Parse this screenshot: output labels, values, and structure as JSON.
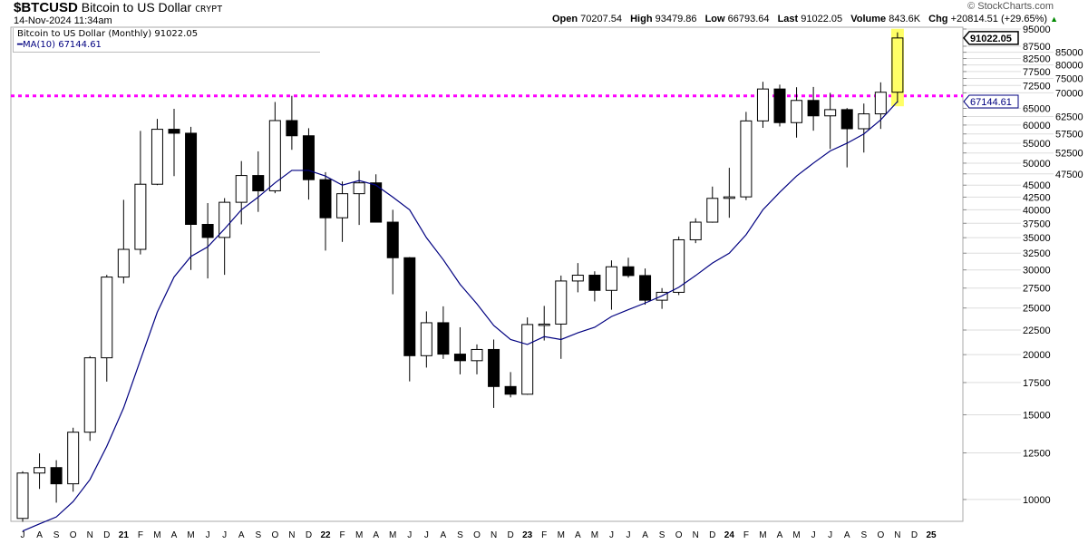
{
  "header": {
    "symbol": "$BTCUSD",
    "name": "Bitcoin to US Dollar",
    "exchange": "CRYPT",
    "datetime": "14-Nov-2024 11:34am",
    "brand": "© StockCharts.com",
    "quote": {
      "open_label": "Open",
      "open": "70207.54",
      "high_label": "High",
      "high": "93479.86",
      "low_label": "Low",
      "low": "66793.64",
      "last_label": "Last",
      "last": "91022.05",
      "volume_label": "Volume",
      "volume": "843.6K",
      "chg_label": "Chg",
      "chg": "+20814.51 (+29.65%)",
      "chg_arrow": "▲"
    }
  },
  "legend": {
    "series": "Bitcoin to US Dollar (Monthly) 91022.05",
    "ma": "MA(10) 67144.61"
  },
  "colors": {
    "ma": "#000080",
    "highlight": "#ffff66",
    "resistance": "#ff00ff",
    "up": "#ffffff",
    "down": "#000000"
  },
  "chart_data": {
    "type": "candlestick",
    "scale": "log",
    "ylim": [
      8300,
      97000
    ],
    "resistance_level": 69000,
    "last_tag": "91022.05",
    "ma_tag": "67144.61",
    "yticks": [
      "95000",
      "87500",
      "85000",
      "82500",
      "80000",
      "77500",
      "75000",
      "72500",
      "70000",
      "65000",
      "62500",
      "60000",
      "57500",
      "55000",
      "52500",
      "50000",
      "47500",
      "45000",
      "42500",
      "40000",
      "37500",
      "35000",
      "32500",
      "30000",
      "27500",
      "25000",
      "22500",
      "20000",
      "17500",
      "15000",
      "12500",
      "10000"
    ],
    "xticks": [
      "J",
      "A",
      "S",
      "O",
      "N",
      "D",
      "21",
      "F",
      "M",
      "A",
      "M",
      "J",
      "J",
      "A",
      "S",
      "O",
      "N",
      "D",
      "22",
      "F",
      "M",
      "A",
      "M",
      "J",
      "J",
      "A",
      "S",
      "O",
      "N",
      "D",
      "23",
      "F",
      "M",
      "A",
      "M",
      "J",
      "J",
      "A",
      "S",
      "O",
      "N",
      "D",
      "24",
      "F",
      "M",
      "A",
      "M",
      "J",
      "J",
      "A",
      "S",
      "O",
      "N",
      "D",
      "25"
    ],
    "candles": [
      [
        9135,
        11450,
        8990,
        11350
      ],
      [
        11350,
        12470,
        10520,
        11650
      ],
      [
        11650,
        12070,
        9850,
        10780
      ],
      [
        10780,
        14100,
        10380,
        13800
      ],
      [
        13800,
        19860,
        13240,
        19700
      ],
      [
        19700,
        29300,
        17580,
        28990
      ],
      [
        28990,
        41950,
        28130,
        33100
      ],
      [
        33100,
        58350,
        32300,
        45200
      ],
      [
        45200,
        61800,
        45000,
        58800
      ],
      [
        58800,
        64860,
        47000,
        57700
      ],
      [
        57700,
        59500,
        30000,
        37300
      ],
      [
        37300,
        41300,
        28800,
        35040
      ],
      [
        35040,
        42300,
        29300,
        41460
      ],
      [
        41460,
        50500,
        37300,
        47130
      ],
      [
        47130,
        52900,
        39600,
        43800
      ],
      [
        43800,
        67000,
        43300,
        61300
      ],
      [
        61300,
        69000,
        53300,
        57000
      ],
      [
        57000,
        59100,
        42000,
        46200
      ],
      [
        46200,
        47900,
        32900,
        38500
      ],
      [
        38500,
        45800,
        34300,
        43200
      ],
      [
        43200,
        48200,
        37200,
        45500
      ],
      [
        45500,
        47400,
        37700,
        37700
      ],
      [
        37700,
        40000,
        26700,
        31800
      ],
      [
        31800,
        31900,
        17600,
        19900
      ],
      [
        19900,
        24600,
        18800,
        23300
      ],
      [
        23300,
        25200,
        19600,
        20050
      ],
      [
        20050,
        22800,
        18200,
        19430
      ],
      [
        19430,
        21000,
        18200,
        20500
      ],
      [
        20500,
        21500,
        15500,
        17170
      ],
      [
        17170,
        18400,
        16300,
        16550
      ],
      [
        16550,
        23900,
        16500,
        23100
      ],
      [
        23100,
        25250,
        21400,
        23150
      ],
      [
        23150,
        29200,
        19600,
        28450
      ],
      [
        28450,
        31000,
        26950,
        29250
      ],
      [
        29250,
        29800,
        25800,
        27200
      ],
      [
        27200,
        31400,
        24800,
        30450
      ],
      [
        30450,
        31800,
        28900,
        29200
      ],
      [
        29200,
        30200,
        25400,
        25950
      ],
      [
        25950,
        27500,
        24900,
        26950
      ],
      [
        26950,
        35200,
        26600,
        34650
      ],
      [
        34650,
        38400,
        34100,
        37700
      ],
      [
        37700,
        44700,
        37600,
        42250
      ],
      [
        42250,
        48900,
        38500,
        42550
      ],
      [
        42550,
        63900,
        41900,
        61200
      ],
      [
        61200,
        73800,
        59200,
        71300
      ],
      [
        71300,
        72800,
        59600,
        60700
      ],
      [
        60700,
        71900,
        56500,
        67500
      ],
      [
        67500,
        72000,
        58400,
        62700
      ],
      [
        62700,
        70000,
        53500,
        64600
      ],
      [
        64600,
        65100,
        49000,
        58950
      ],
      [
        58950,
        66500,
        52600,
        63300
      ],
      [
        63300,
        73600,
        58900,
        70200
      ],
      [
        70207.54,
        93479.86,
        66793.64,
        91022.05
      ]
    ],
    "ma10": [
      8600,
      8900,
      9200,
      9900,
      11000,
      12900,
      15500,
      19500,
      24500,
      29000,
      32000,
      33500,
      36500,
      40000,
      42500,
      45500,
      48300,
      48300,
      47000,
      45000,
      46000,
      45000,
      42500,
      40000,
      35000,
      31500,
      28000,
      25500,
      23000,
      21500,
      21000,
      21800,
      21500,
      22200,
      22800,
      24000,
      24800,
      25600,
      26500,
      27600,
      29200,
      31000,
      32500,
      35500,
      40000,
      43500,
      47000,
      50000,
      53000,
      55000,
      57500,
      61500,
      67144.61
    ]
  }
}
